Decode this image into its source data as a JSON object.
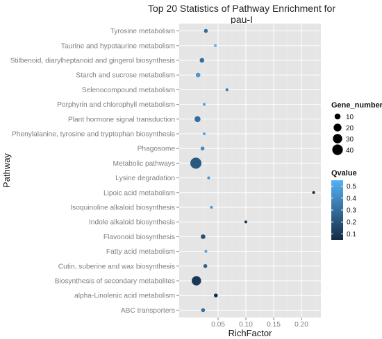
{
  "chart_data": {
    "type": "scatter",
    "title_lines": [
      "Top 20 Statistics of Pathway Enrichment for",
      "pau-I"
    ],
    "xlabel": "RichFactor",
    "ylabel": "Pathway",
    "xlim": [
      -0.02,
      0.235
    ],
    "x_ticks": [
      0.05,
      0.1,
      0.15,
      0.2
    ],
    "x_tick_labels": [
      "0.05",
      "0.10",
      "0.15",
      "0.20"
    ],
    "grid": true,
    "categories": [
      "Tyrosine metabolism",
      "Taurine and hypotaurine metabolism",
      "Stilbenoid, diarylheptanoid and gingerol biosynthesis",
      "Starch and sucrose metabolism",
      "Selenocompound metabolism",
      "Porphyrin and chlorophyll metabolism",
      "Plant hormone signal transduction",
      "Phenylalanine, tyrosine and tryptophan biosynthesis",
      "Phagosome",
      "Metabolic pathways",
      "Lysine degradation",
      "Lipoic acid metabolism",
      "Isoquinoline alkaloid biosynthesis",
      "Indole alkaloid biosynthesis",
      "Flavonoid biosynthesis",
      "Fatty acid metabolism",
      "Cutin, suberine and wax biosynthesis",
      "Biosynthesis of secondary metabolites",
      "alpha-Linolenic acid metabolism",
      "ABC transporters"
    ],
    "points": [
      {
        "pathway": "Tyrosine metabolism",
        "rich_factor": 0.028,
        "gene_number": 3,
        "qvalue": 0.3
      },
      {
        "pathway": "Taurine and hypotaurine metabolism",
        "rich_factor": 0.045,
        "gene_number": 1,
        "qvalue": 0.55
      },
      {
        "pathway": "Stilbenoid, diarylheptanoid and gingerol biosynthesis",
        "rich_factor": 0.021,
        "gene_number": 5,
        "qvalue": 0.3
      },
      {
        "pathway": "Starch and sucrose metabolism",
        "rich_factor": 0.014,
        "gene_number": 5,
        "qvalue": 0.45
      },
      {
        "pathway": "Selenocompound metabolism",
        "rich_factor": 0.066,
        "gene_number": 1,
        "qvalue": 0.35
      },
      {
        "pathway": "Porphyrin and chlorophyll metabolism",
        "rich_factor": 0.025,
        "gene_number": 1,
        "qvalue": 0.5
      },
      {
        "pathway": "Plant hormone signal transduction",
        "rich_factor": 0.013,
        "gene_number": 10,
        "qvalue": 0.3
      },
      {
        "pathway": "Phenylalanine, tyrosine and tryptophan biosynthesis",
        "rich_factor": 0.025,
        "gene_number": 1,
        "qvalue": 0.5
      },
      {
        "pathway": "Phagosome",
        "rich_factor": 0.022,
        "gene_number": 3,
        "qvalue": 0.4
      },
      {
        "pathway": "Metabolic pathways",
        "rich_factor": 0.01,
        "gene_number": 45,
        "qvalue": 0.22
      },
      {
        "pathway": "Lysine degradation",
        "rich_factor": 0.033,
        "gene_number": 1,
        "qvalue": 0.45
      },
      {
        "pathway": "Lipoic acid metabolism",
        "rich_factor": 0.222,
        "gene_number": 1,
        "qvalue": 0.05
      },
      {
        "pathway": "Isoquinoline alkaloid biosynthesis",
        "rich_factor": 0.038,
        "gene_number": 1,
        "qvalue": 0.45
      },
      {
        "pathway": "Indole alkaloid biosynthesis",
        "rich_factor": 0.1,
        "gene_number": 1,
        "qvalue": 0.1
      },
      {
        "pathway": "Flavonoid biosynthesis",
        "rich_factor": 0.023,
        "gene_number": 5,
        "qvalue": 0.2
      },
      {
        "pathway": "Fatty acid metabolism",
        "rich_factor": 0.028,
        "gene_number": 1,
        "qvalue": 0.5
      },
      {
        "pathway": "Cutin, suberine and wax biosynthesis",
        "rich_factor": 0.027,
        "gene_number": 3,
        "qvalue": 0.25
      },
      {
        "pathway": "Biosynthesis of secondary metabolites",
        "rich_factor": 0.011,
        "gene_number": 30,
        "qvalue": 0.1
      },
      {
        "pathway": "alpha-Linolenic acid metabolism",
        "rich_factor": 0.046,
        "gene_number": 3,
        "qvalue": 0.05
      },
      {
        "pathway": "ABC transporters",
        "rich_factor": 0.023,
        "gene_number": 3,
        "qvalue": 0.3
      }
    ],
    "size_legend": {
      "title": "Gene_number",
      "values": [
        10,
        20,
        30,
        40
      ],
      "labels": [
        "10",
        "20",
        "30",
        "40"
      ]
    },
    "color_legend": {
      "title": "Qvalue",
      "range": [
        0.05,
        0.55
      ],
      "ticks": [
        0.1,
        0.2,
        0.3,
        0.4,
        0.5
      ],
      "tick_labels": [
        "0.1",
        "0.2",
        "0.3",
        "0.4",
        "0.5"
      ],
      "low_color": "#132B43",
      "high_color": "#56B1F7"
    },
    "colors": {
      "panel_background": "#e5e5e5",
      "gridline": "#ffffff",
      "text": "#333333",
      "axis_text": "#7f7f7f"
    }
  }
}
